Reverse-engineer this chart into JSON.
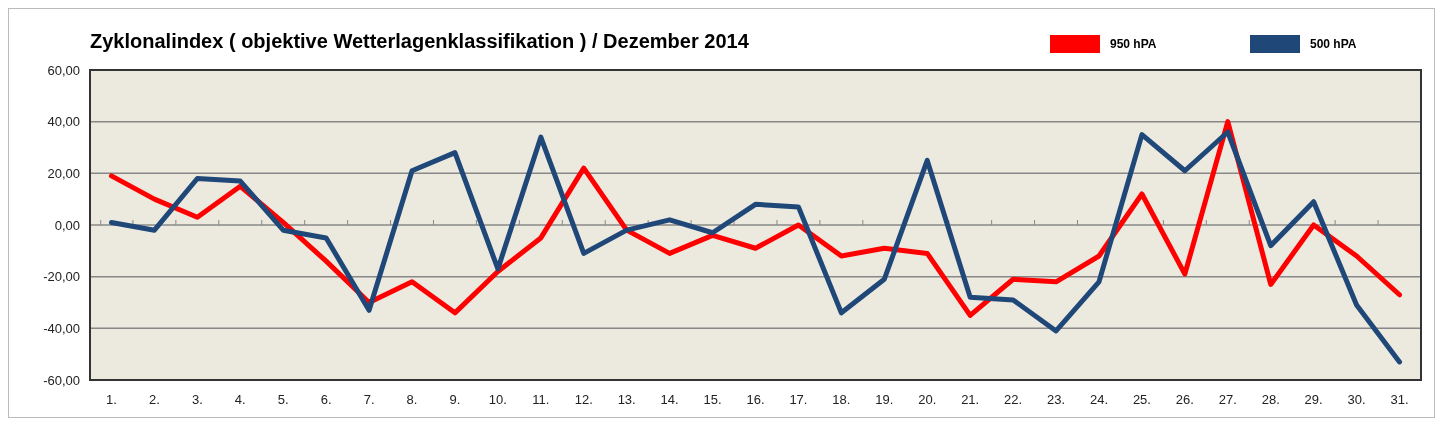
{
  "chart_data": {
    "type": "line",
    "title": "Zyklonalindex  ( objektive Wetterlagenklassifikation )  /  Dezember 2014",
    "categories": [
      "1.",
      "2.",
      "3.",
      "4.",
      "5.",
      "6.",
      "7.",
      "8.",
      "9.",
      "10.",
      "11.",
      "12.",
      "13.",
      "14.",
      "15.",
      "16.",
      "17.",
      "18.",
      "19.",
      "20.",
      "21.",
      "22.",
      "23.",
      "24.",
      "25.",
      "26.",
      "27.",
      "28.",
      "29.",
      "30.",
      "31."
    ],
    "series": [
      {
        "name": "950 hPA",
        "color": "#ff0000",
        "values": [
          19,
          10,
          3,
          15,
          1,
          -14,
          -30,
          -22,
          -34,
          -18,
          -5,
          22,
          -2,
          -11,
          -4,
          -9,
          0,
          -12,
          -9,
          -11,
          -35,
          -21,
          -22,
          -12,
          12,
          -19,
          40,
          -23,
          0,
          -12,
          -27
        ]
      },
      {
        "name": "500 hPA",
        "color": "#1f4778",
        "values": [
          1,
          -2,
          18,
          17,
          -2,
          -5,
          -33,
          21,
          28,
          -17,
          34,
          -11,
          -2,
          2,
          -3,
          8,
          7,
          -34,
          -21,
          25,
          -28,
          -29,
          -41,
          -22,
          35,
          21,
          36,
          -8,
          9,
          -31,
          -53
        ]
      }
    ],
    "ylim": [
      -60,
      60
    ],
    "yticks": [
      {
        "value": -60,
        "label": "-60,00"
      },
      {
        "value": -40,
        "label": "-40,00"
      },
      {
        "value": -20,
        "label": "-20,00"
      },
      {
        "value": 0,
        "label": "0,00"
      },
      {
        "value": 20,
        "label": "20,00"
      },
      {
        "value": 40,
        "label": "40,00"
      },
      {
        "value": 60,
        "label": "60,00"
      }
    ],
    "grid": "y",
    "legend": "top right",
    "marker": "none",
    "line_style": "solid"
  }
}
